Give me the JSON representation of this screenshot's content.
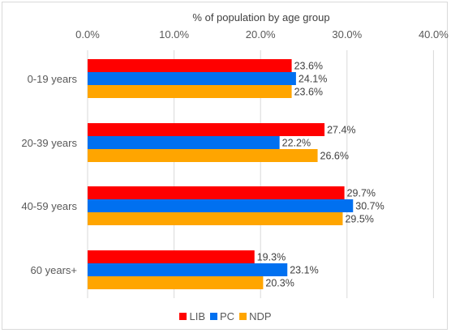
{
  "chart_data": {
    "type": "bar",
    "orientation": "horizontal",
    "axis_title": "% of population by age group",
    "x_ticks": [
      "0.0%",
      "10.0%",
      "20.0%",
      "30.0%",
      "40.0%"
    ],
    "xlim": [
      0,
      40
    ],
    "grid": true,
    "legend_position": "bottom",
    "categories": [
      "0-19 years",
      "20-39 years",
      "40-59 years",
      "60 years+"
    ],
    "series": [
      {
        "name": "LIB",
        "color": "#ff0000",
        "values": [
          23.6,
          27.4,
          29.7,
          19.3
        ],
        "labels": [
          "23.6%",
          "27.4%",
          "29.7%",
          "19.3%"
        ]
      },
      {
        "name": "PC",
        "color": "#0070f0",
        "values": [
          24.1,
          22.2,
          30.7,
          23.1
        ],
        "labels": [
          "24.1%",
          "22.2%",
          "30.7%",
          "23.1%"
        ]
      },
      {
        "name": "NDP",
        "color": "#ffa500",
        "values": [
          23.6,
          26.6,
          29.5,
          20.3
        ],
        "labels": [
          "23.6%",
          "26.6%",
          "29.5%",
          "20.3%"
        ]
      }
    ]
  }
}
